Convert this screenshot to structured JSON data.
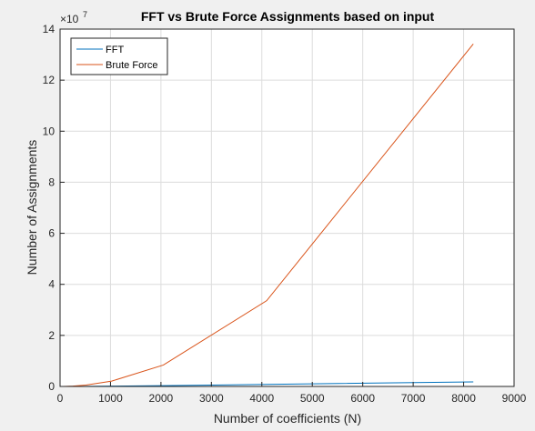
{
  "figure": {
    "background": "#f0f0f0"
  },
  "chart_data": {
    "type": "line",
    "title": "FFT vs Brute Force Assignments based on input",
    "xlabel": "Number of coefficients (N)",
    "ylabel": "Number of Assignments",
    "xlim": [
      0,
      9000
    ],
    "ylim": [
      0,
      14
    ],
    "y_exponent_label": "×10",
    "y_exponent_power": "7",
    "xticks": [
      "0",
      "1000",
      "2000",
      "3000",
      "4000",
      "5000",
      "6000",
      "7000",
      "8000",
      "9000"
    ],
    "yticks": [
      "0",
      "2",
      "4",
      "6",
      "8",
      "10",
      "12",
      "14"
    ],
    "grid": true,
    "legend_position": "top-left",
    "series": [
      {
        "name": "FFT",
        "color": "#0072bd",
        "x": [
          1,
          2,
          4,
          8,
          16,
          32,
          64,
          128,
          256,
          512,
          1024,
          2048,
          4096,
          8192
        ],
        "y": [
          0,
          0,
          0,
          0,
          0.0001,
          0.0003,
          0.0006,
          0.0013,
          0.003,
          0.006,
          0.014,
          0.03,
          0.08,
          0.18
        ]
      },
      {
        "name": "Brute Force",
        "color": "#d95319",
        "x": [
          1,
          2,
          4,
          8,
          16,
          32,
          64,
          128,
          256,
          512,
          1024,
          2048,
          4096,
          8192
        ],
        "y": [
          0,
          0,
          0,
          0,
          0,
          0.0002,
          0.0008,
          0.0033,
          0.013,
          0.052,
          0.21,
          0.84,
          3.36,
          13.42
        ]
      }
    ]
  }
}
